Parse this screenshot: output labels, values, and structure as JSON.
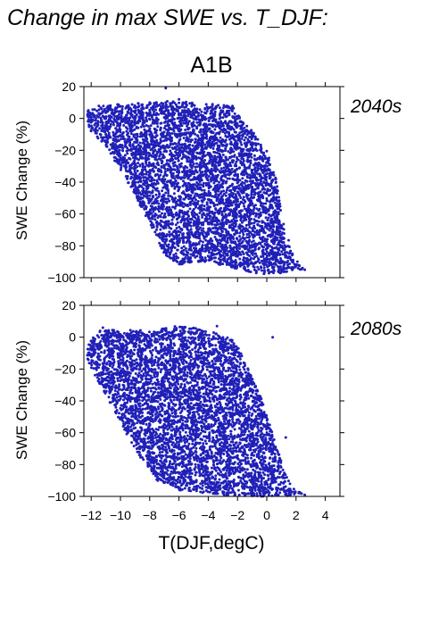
{
  "figure": {
    "title": "Change in max SWE vs. T_DJF:",
    "scenario": "A1B",
    "xlabel": "T(DJF,degC)",
    "point_color": "#2020b8"
  },
  "chart_data": [
    {
      "type": "scatter",
      "panel": "2040s",
      "period_label": "2040s",
      "ylabel": "SWE Change (%)",
      "xlim": [
        -12.5,
        5
      ],
      "ylim": [
        -100,
        20
      ],
      "xticks": [
        -12,
        -10,
        -8,
        -6,
        -4,
        -2,
        0,
        2,
        4
      ],
      "yticks": [
        20,
        0,
        -20,
        -40,
        -60,
        -80,
        -100
      ],
      "xtick_labels_shown": false,
      "series": [
        {
          "point_count": 5000,
          "trend": "SWE change declines with warmer DJF temperature",
          "cloud_envelope": [
            [
              -12.3,
              5
            ],
            [
              -11.5,
              8
            ],
            [
              -10,
              9
            ],
            [
              -8,
              10
            ],
            [
              -6.5,
              11
            ],
            [
              -5,
              10
            ],
            [
              -3.5,
              9
            ],
            [
              -2.2,
              8
            ],
            [
              -1.8,
              0
            ],
            [
              -0.8,
              -10
            ],
            [
              0,
              -20
            ],
            [
              0.7,
              -40
            ],
            [
              1,
              -60
            ],
            [
              1.6,
              -80
            ],
            [
              2.6,
              -95
            ],
            [
              1.2,
              -97
            ],
            [
              0,
              -98
            ],
            [
              -1.5,
              -96
            ],
            [
              -3,
              -92
            ],
            [
              -4.5,
              -90
            ],
            [
              -6,
              -92
            ],
            [
              -7,
              -85
            ],
            [
              -7.8,
              -70
            ],
            [
              -8.8,
              -52
            ],
            [
              -9.8,
              -35
            ],
            [
              -11,
              -18
            ],
            [
              -12.3,
              -5
            ]
          ],
          "outliers": [
            [
              -6.9,
              19
            ],
            [
              -6.0,
              12
            ],
            [
              1.4,
              -94
            ],
            [
              2.6,
              -95
            ],
            [
              -11.8,
              2
            ]
          ]
        }
      ]
    },
    {
      "type": "scatter",
      "panel": "2080s",
      "period_label": "2080s",
      "ylabel": "SWE Change (%)",
      "xlim": [
        -12.5,
        5
      ],
      "ylim": [
        -100,
        20
      ],
      "xticks": [
        -12,
        -10,
        -8,
        -6,
        -4,
        -2,
        0,
        2,
        4
      ],
      "xtick_labels": [
        "−12",
        "−10",
        "−8",
        "−6",
        "−4",
        "−2",
        "0",
        "2",
        "4"
      ],
      "yticks": [
        20,
        0,
        -20,
        -40,
        -60,
        -80,
        -100
      ],
      "xtick_labels_shown": true,
      "series": [
        {
          "point_count": 5000,
          "trend": "SWE change declines with warmer DJF temperature, with more points near -100%",
          "cloud_envelope": [
            [
              -12.3,
              -5
            ],
            [
              -11.5,
              4
            ],
            [
              -10,
              5
            ],
            [
              -8,
              4
            ],
            [
              -6.5,
              7
            ],
            [
              -5,
              6
            ],
            [
              -3.5,
              3
            ],
            [
              -2.2,
              -2
            ],
            [
              -1.5,
              -15
            ],
            [
              -0.5,
              -35
            ],
            [
              0.2,
              -55
            ],
            [
              0.8,
              -72
            ],
            [
              1.2,
              -85
            ],
            [
              1.8,
              -95
            ],
            [
              2.6,
              -99
            ],
            [
              1,
              -100
            ],
            [
              0,
              -100
            ],
            [
              -2,
              -100
            ],
            [
              -4,
              -98
            ],
            [
              -6,
              -96
            ],
            [
              -7.5,
              -90
            ],
            [
              -8.5,
              -78
            ],
            [
              -9.5,
              -62
            ],
            [
              -10.5,
              -45
            ],
            [
              -11.5,
              -28
            ],
            [
              -12.3,
              -15
            ]
          ],
          "outliers": [
            [
              -11.2,
              6
            ],
            [
              -3.4,
              7
            ],
            [
              0.4,
              0
            ],
            [
              1.3,
              -63
            ],
            [
              2.6,
              -99
            ]
          ]
        }
      ]
    }
  ]
}
